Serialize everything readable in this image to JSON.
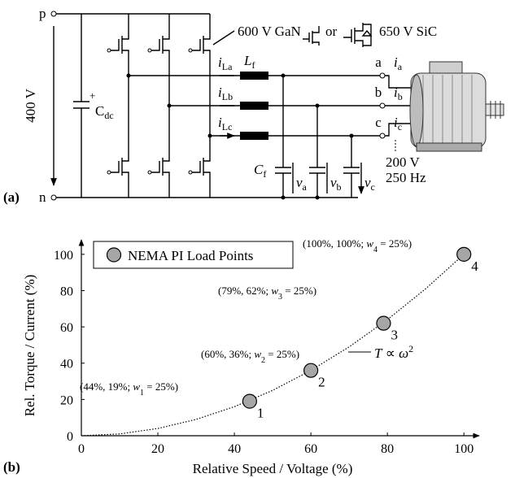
{
  "circuit": {
    "label": "(a)",
    "p": "p",
    "n": "n",
    "dc_voltage": "400 V",
    "plus": "+",
    "cdc": {
      "main": "C",
      "sub": "dc"
    },
    "device_gan": "600 V GaN",
    "or": "or",
    "device_sic": "650 V SiC",
    "inductor": {
      "main": "L",
      "sub": "f"
    },
    "filter_cap": {
      "main": "C",
      "sub": "f"
    },
    "inverter_currents": [
      {
        "main": "i",
        "sub": "La"
      },
      {
        "main": "i",
        "sub": "Lb"
      },
      {
        "main": "i",
        "sub": "Lc"
      }
    ],
    "terminals": [
      "a",
      "b",
      "c"
    ],
    "phase_currents": [
      {
        "main": "i",
        "sub": "a"
      },
      {
        "main": "i",
        "sub": "b"
      },
      {
        "main": "i",
        "sub": "c"
      }
    ],
    "voltages": [
      {
        "main": "v",
        "sub": "a"
      },
      {
        "main": "v",
        "sub": "b"
      },
      {
        "main": "v",
        "sub": "c"
      }
    ],
    "motor_voltage": "200 V",
    "motor_frequency": "250 Hz"
  },
  "chart_data": {
    "type": "scatter",
    "panel_label": "(b)",
    "x_label": "Relative Speed / Voltage (%)",
    "y_label": "Rel. Torque / Current (%)",
    "x": [
      44,
      60,
      79,
      100
    ],
    "series": [
      {
        "name": "NEMA PI Load Points",
        "color": "#a6a6a6",
        "values": [
          19,
          36,
          62,
          100
        ],
        "point_labels": [
          "1",
          "2",
          "3",
          "4"
        ]
      }
    ],
    "annotations": [
      {
        "parts": [
          "(44%, 19%; ",
          "w",
          "1",
          " = 25%)"
        ]
      },
      {
        "parts": [
          "(60%, 36%; ",
          "w",
          "2",
          " = 25%)"
        ]
      },
      {
        "parts": [
          "(79%, 62%; ",
          "w",
          "3",
          " = 25%)"
        ]
      },
      {
        "parts": [
          "(100%, 100%; ",
          "w",
          "4",
          " = 25%)"
        ]
      }
    ],
    "fit": {
      "x": [
        0,
        10,
        20,
        30,
        40,
        50,
        60,
        70,
        80,
        90,
        100
      ],
      "y": [
        0,
        1,
        4,
        9,
        16,
        25,
        36,
        49,
        64,
        81,
        100
      ],
      "label_parts": [
        "T",
        " ∝ ",
        "ω",
        "2"
      ]
    },
    "xlim": [
      0,
      104
    ],
    "ylim": [
      0,
      108
    ],
    "xticks": [
      0,
      20,
      40,
      60,
      80,
      100
    ],
    "yticks": [
      0,
      20,
      40,
      60,
      80,
      100
    ],
    "grid": false,
    "legend": "upper left"
  }
}
